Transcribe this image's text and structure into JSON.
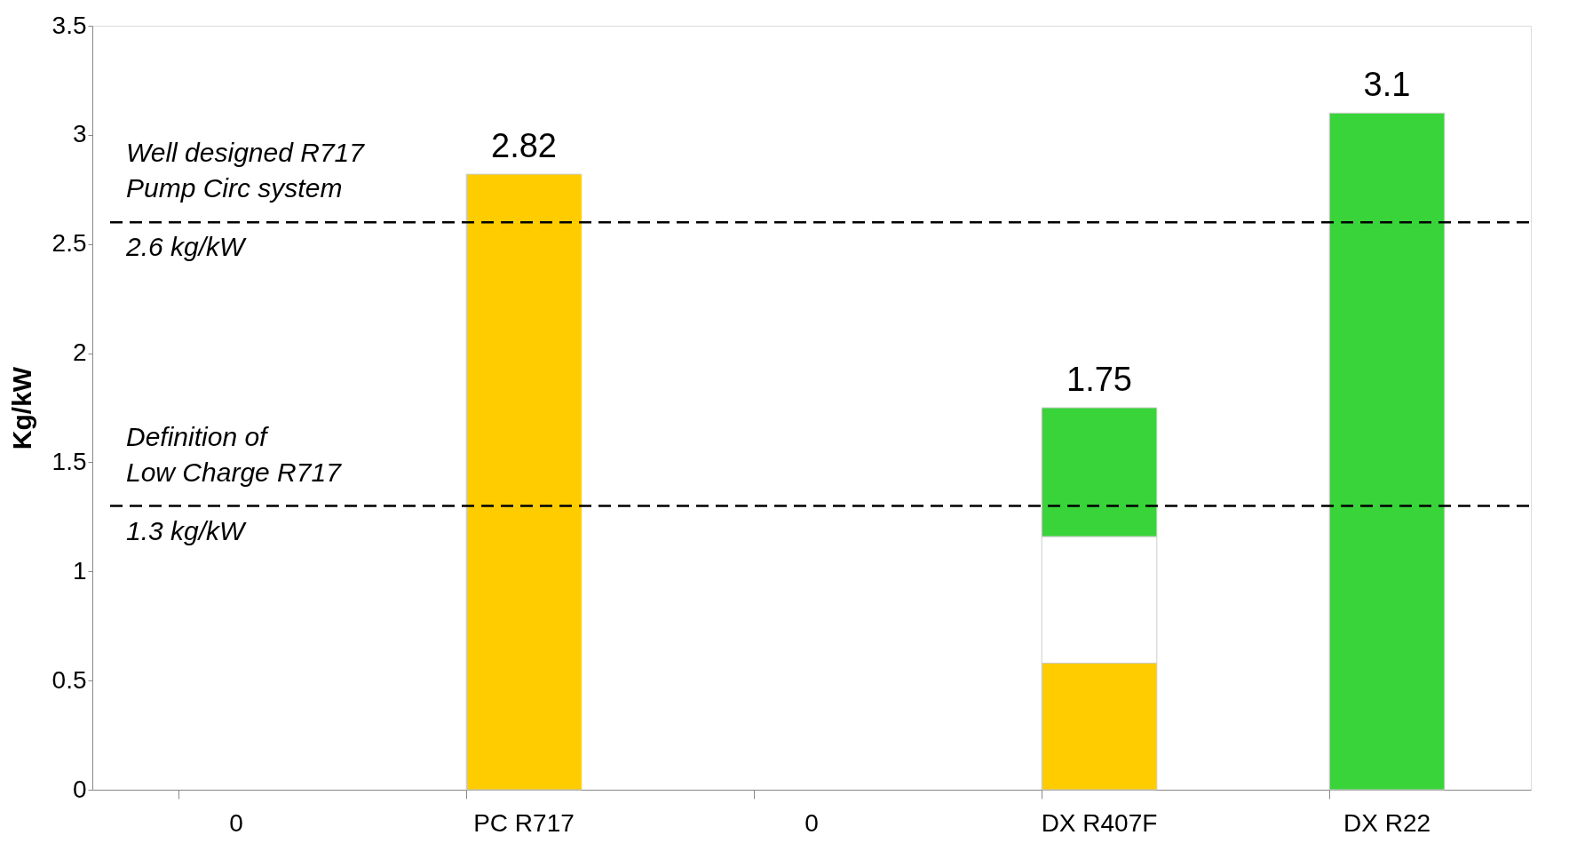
{
  "chart_data": {
    "type": "bar",
    "stacked": true,
    "ylabel": "Kg/kW",
    "categories": [
      "0",
      "PC R717",
      "0",
      "DX R407F",
      "DX R22"
    ],
    "series": [
      {
        "color": "#ffcc00",
        "values": [
          null,
          2.82,
          null,
          0.58,
          null
        ]
      },
      {
        "color": "#ffffff",
        "values": [
          null,
          null,
          null,
          0.58,
          null
        ]
      },
      {
        "color": "#38d43a",
        "values": [
          null,
          null,
          null,
          0.59,
          3.1
        ]
      }
    ],
    "totals": [
      null,
      "2.82",
      null,
      "1.75",
      "3.1"
    ],
    "ylim": [
      0,
      3.5
    ],
    "yticks": [
      0,
      0.5,
      1,
      1.5,
      2,
      2.5,
      3,
      3.5
    ],
    "grid": false,
    "ref_lines": [
      {
        "axis": "y",
        "value": 2.6,
        "label": "2.6 kg/kW",
        "color": "#000000",
        "line_style": "dashed"
      },
      {
        "axis": "y",
        "value": 1.3,
        "label": "1.3 kg/kW",
        "color": "#000000",
        "line_style": "dashed"
      }
    ],
    "annotations": [
      {
        "text": "Well designed R717\nPump Circ system",
        "y": 2.6
      },
      {
        "text": "Definition of\nLow Charge R717",
        "y": 1.3
      }
    ]
  }
}
